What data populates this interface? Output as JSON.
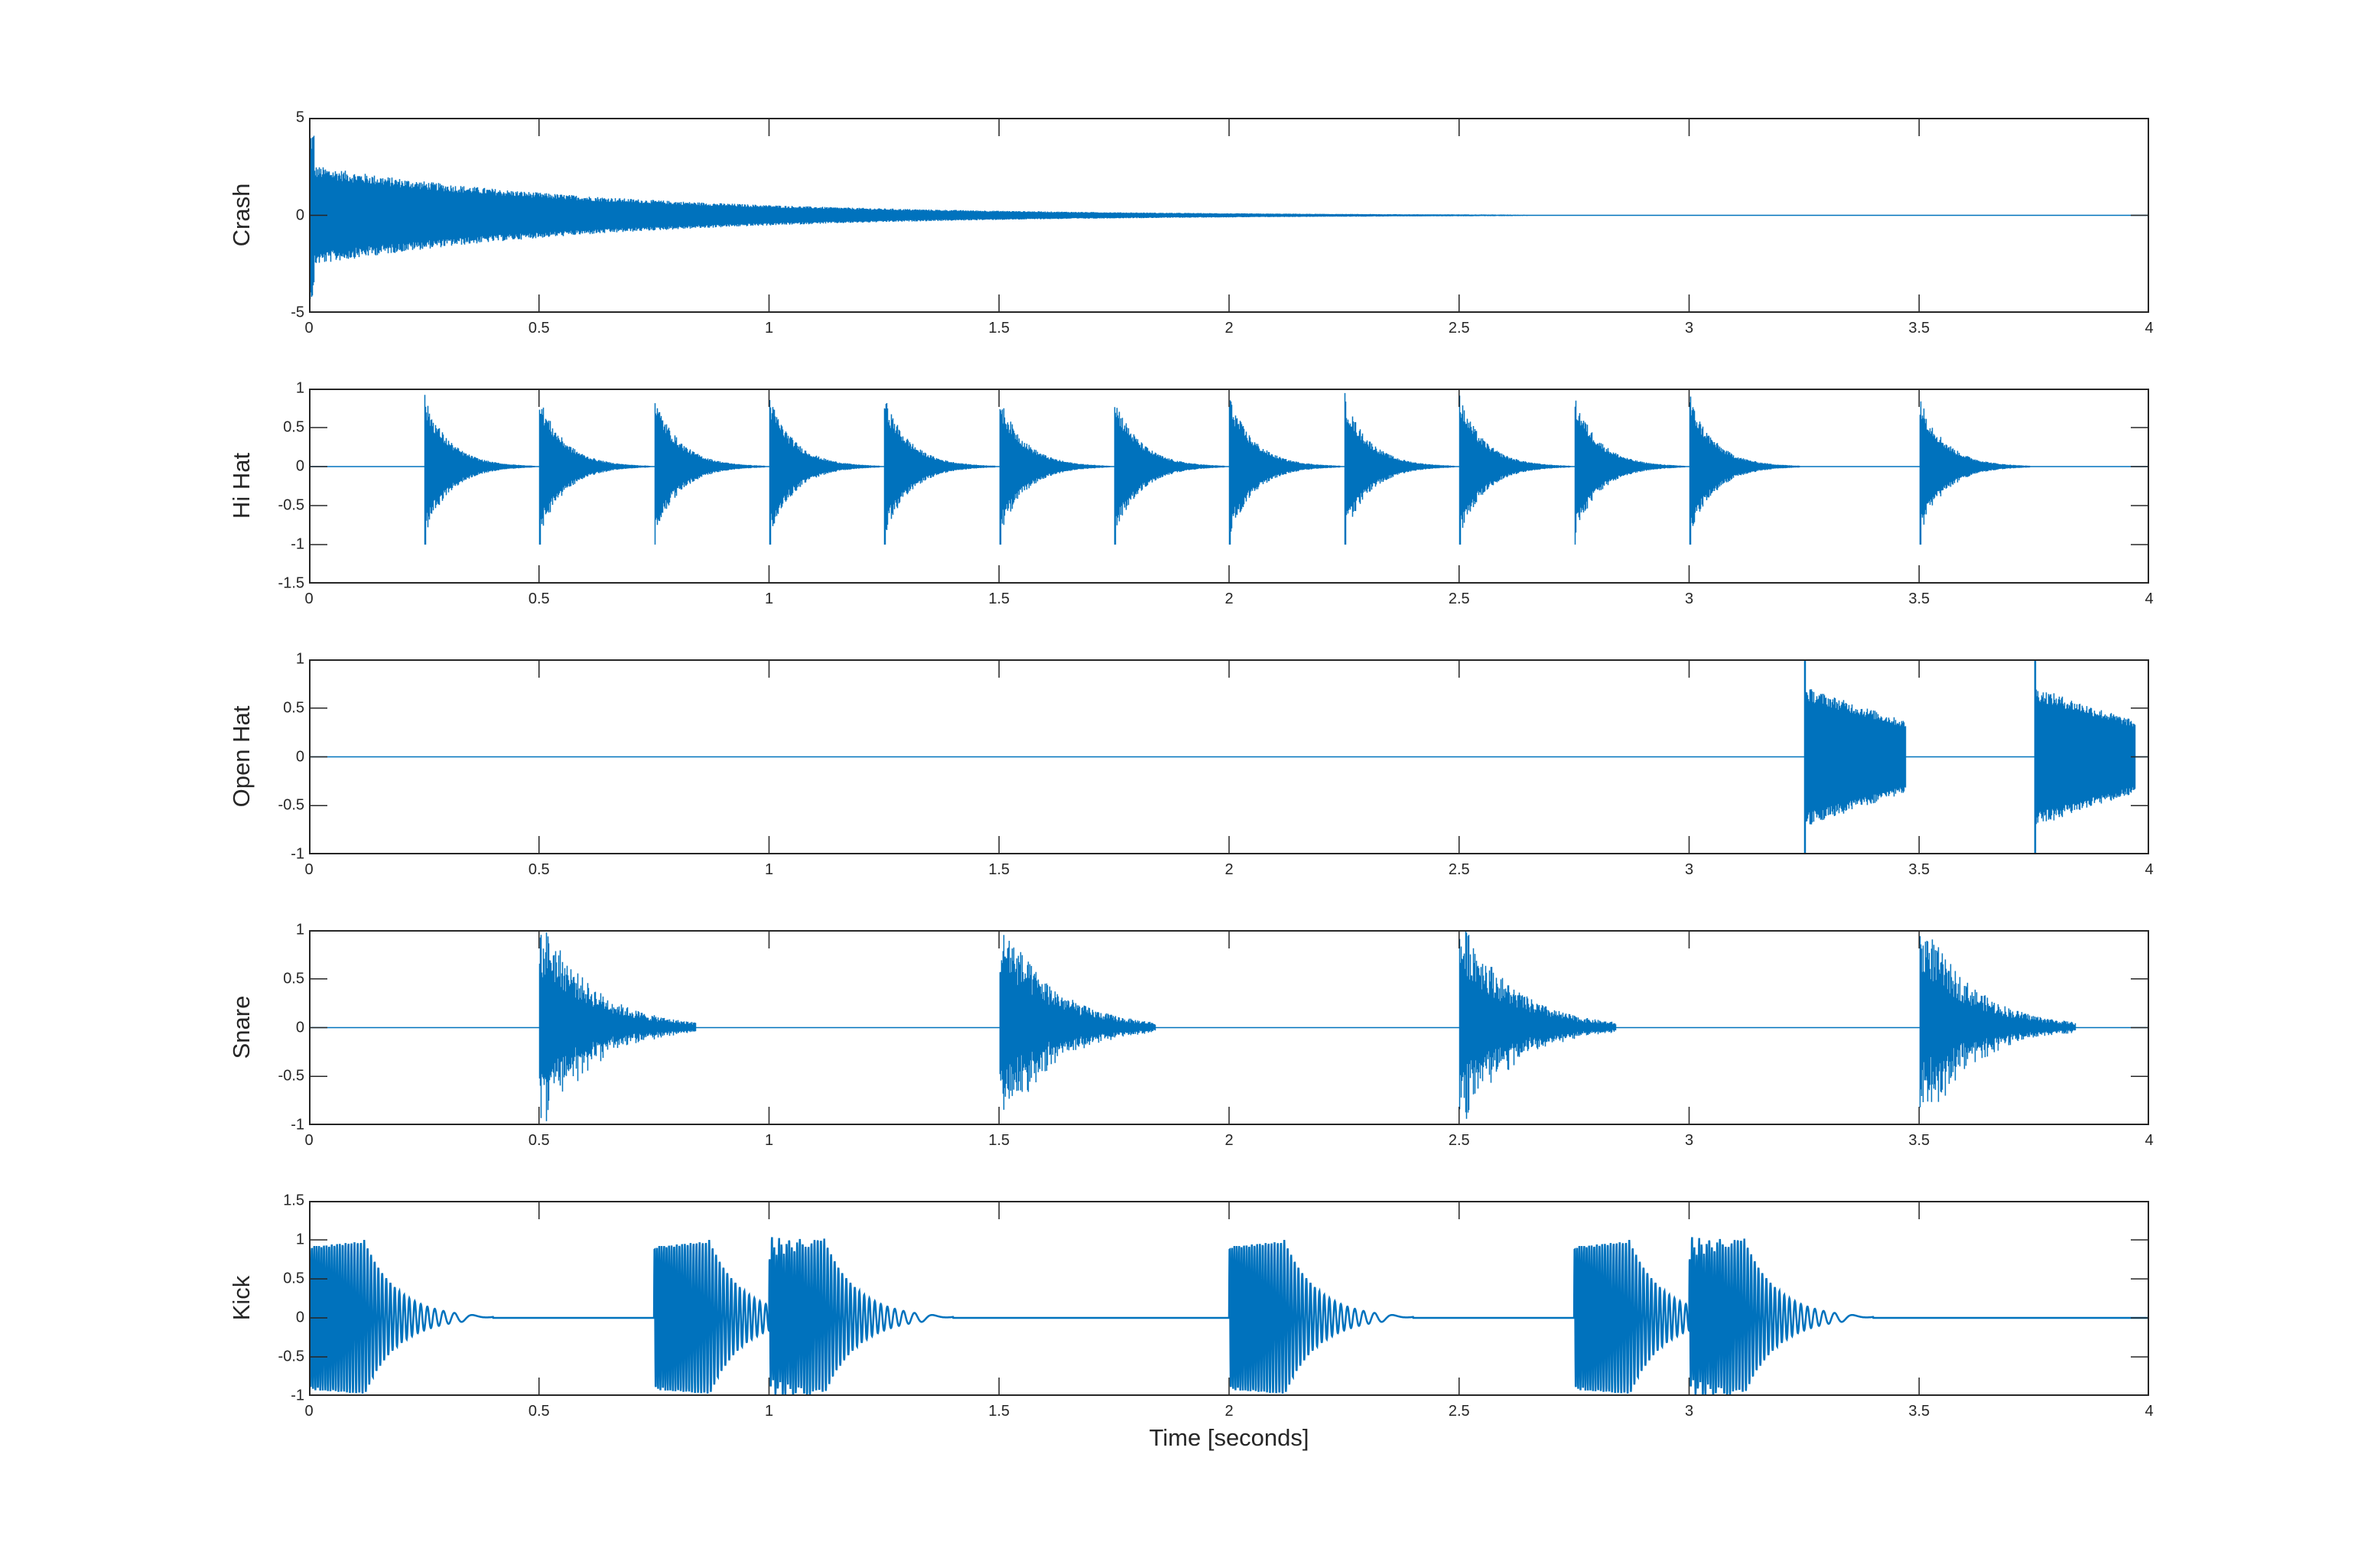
{
  "figure": {
    "xlabel": "Time [seconds]",
    "line_color": "#0072BD",
    "axes_color": "#262626"
  },
  "chart_data": {
    "type": "line",
    "title": "",
    "xlabel": "Time [seconds]",
    "xlim": [
      0,
      4
    ],
    "x_ticks": [
      "0",
      "0.5",
      "1",
      "1.5",
      "2",
      "2.5",
      "3",
      "3.5",
      "4"
    ],
    "grid": false,
    "legend": null,
    "panels": [
      {
        "ylabel": "Crash",
        "ylim": [
          -5,
          5
        ],
        "y_ticks": [
          "5",
          "0",
          "-5"
        ],
        "y_tick_values": [
          5,
          0,
          -5
        ],
        "description": "Single crash cymbal hit at t=0; noise with peak ~4.3, envelope ~±2.5 decaying exponentially to ~0 by t≈2.5 s",
        "events": [
          {
            "onset": 0,
            "peak": 4.3,
            "envelope": 2.6,
            "decay_end": 2.6
          }
        ]
      },
      {
        "ylabel": "Hi Hat",
        "ylim": [
          -1.5,
          1
        ],
        "y_ticks": [
          "1",
          "0.5",
          "0",
          "-0.5",
          "-1",
          "-1.5"
        ],
        "y_tick_values": [
          1,
          0.5,
          0,
          -0.5,
          -1,
          -1.5
        ],
        "description": "Closed hi-hat hits, peak ~±0.9 (min -1), decaying over ~0.2 s",
        "events": [
          {
            "onset": 0.25,
            "peak": 0.9,
            "decay_end": 0.22
          },
          {
            "onset": 0.5,
            "peak": 0.9,
            "decay_end": 0.22
          },
          {
            "onset": 0.75,
            "peak": 0.9,
            "decay_end": 0.22
          },
          {
            "onset": 1.0,
            "peak": 0.9,
            "decay_end": 0.22
          },
          {
            "onset": 1.25,
            "peak": 0.9,
            "decay_end": 0.22
          },
          {
            "onset": 1.5,
            "peak": 0.9,
            "decay_end": 0.22
          },
          {
            "onset": 1.75,
            "peak": 0.9,
            "decay_end": 0.22
          },
          {
            "onset": 2.0,
            "peak": 0.9,
            "decay_end": 0.22
          },
          {
            "onset": 2.25,
            "peak": 0.9,
            "decay_end": 0.22
          },
          {
            "onset": 2.5,
            "peak": 0.9,
            "decay_end": 0.22
          },
          {
            "onset": 2.75,
            "peak": 0.9,
            "decay_end": 0.22
          },
          {
            "onset": 3.0,
            "peak": 0.9,
            "decay_end": 0.22
          },
          {
            "onset": 3.5,
            "peak": 0.9,
            "decay_end": 0.22
          }
        ]
      },
      {
        "ylabel": "Open Hat",
        "ylim": [
          -1,
          1
        ],
        "y_ticks": [
          "1",
          "0.5",
          "0",
          "-0.5",
          "-1"
        ],
        "y_tick_values": [
          1,
          0.5,
          0,
          -0.5,
          -1
        ],
        "description": "Open hi-hat hits with spike to ±1, body ~±0.7 decaying to ~±0.35, cut off after ~0.22 s",
        "events": [
          {
            "onset": 3.25,
            "peak": 0.72,
            "end": 3.47
          },
          {
            "onset": 3.75,
            "peak": 0.72,
            "end": 3.97
          }
        ]
      },
      {
        "ylabel": "Snare",
        "ylim": [
          -1,
          1
        ],
        "y_ticks": [
          "1",
          "0.5",
          "0",
          "-0.5",
          "-1"
        ],
        "y_tick_values": [
          1,
          0.5,
          0,
          -0.5,
          -1
        ],
        "description": "Snare hits clipping at ±1, decaying over ~0.35 s",
        "events": [
          {
            "onset": 0.5,
            "peak": 1.0,
            "decay_end": 0.35
          },
          {
            "onset": 1.5,
            "peak": 1.0,
            "decay_end": 0.35
          },
          {
            "onset": 2.5,
            "peak": 1.0,
            "decay_end": 0.35
          },
          {
            "onset": 3.5,
            "peak": 1.0,
            "decay_end": 0.35
          }
        ]
      },
      {
        "ylabel": "Kick",
        "ylim": [
          -1,
          1.5
        ],
        "y_ticks": [
          "1.5",
          "1",
          "0.5",
          "0",
          "-0.5",
          "-1"
        ],
        "y_tick_values": [
          1.5,
          1,
          0.5,
          0,
          -0.5,
          -1
        ],
        "description": "Kick drum hits: downward frequency sweep sinusoid, amplitude ~0.9-1.0 then decaying to 0 by ~0.35 s; overlapping hits sum up to ~1.15",
        "events": [
          {
            "onset": 0.0,
            "peak": 1.0,
            "decay_end": 0.35
          },
          {
            "onset": 0.75,
            "peak": 1.0,
            "decay_end": 0.35
          },
          {
            "onset": 1.0,
            "peak": 1.0,
            "decay_end": 0.35
          },
          {
            "onset": 2.0,
            "peak": 1.0,
            "decay_end": 0.35
          },
          {
            "onset": 2.75,
            "peak": 1.0,
            "decay_end": 0.35
          },
          {
            "onset": 3.0,
            "peak": 1.0,
            "decay_end": 0.35
          }
        ]
      }
    ]
  }
}
